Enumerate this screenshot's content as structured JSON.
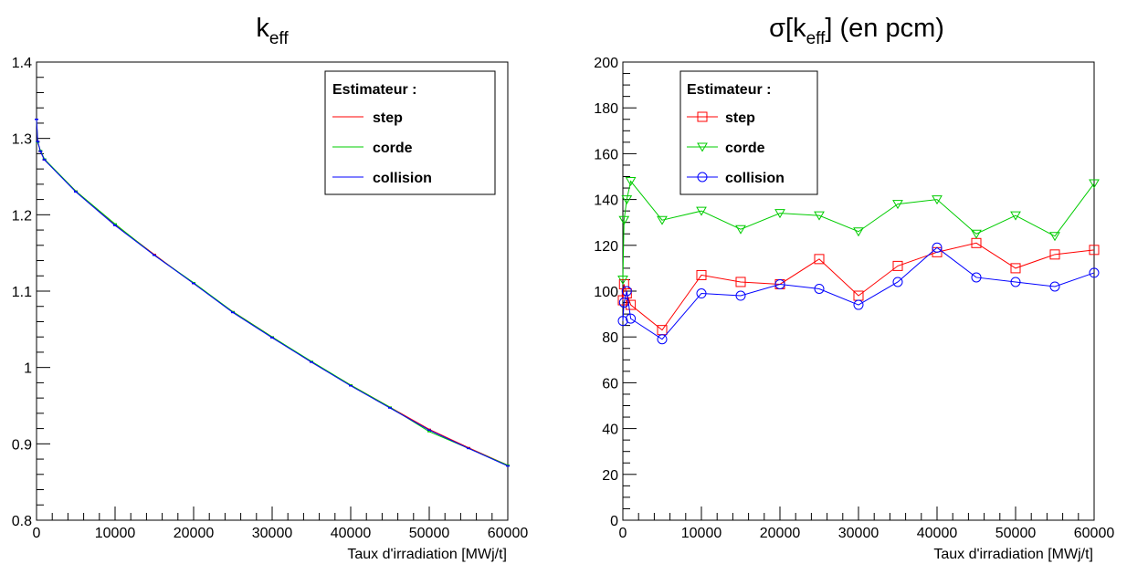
{
  "chart_data": [
    {
      "type": "line",
      "title_main": "k",
      "title_sub": "eff",
      "xlabel": "Taux d'irradiation [MWj/t]",
      "ylabel": "",
      "xlim": [
        0,
        60000
      ],
      "ylim": [
        0.8,
        1.4
      ],
      "xticks": [
        0,
        10000,
        20000,
        30000,
        40000,
        50000,
        60000
      ],
      "xtick_labels": [
        "0",
        "10000",
        "20000",
        "30000",
        "40000",
        "50000",
        "60000"
      ],
      "yticks": [
        0.8,
        0.9,
        1.0,
        1.1,
        1.2,
        1.3,
        1.4
      ],
      "ytick_labels": [
        "0.8",
        "0.9",
        "1",
        "1.1",
        "1.2",
        "1.3",
        "1.4"
      ],
      "grid": false,
      "legend": {
        "title": "Estimateur :",
        "placement": "top-right",
        "markers": false
      },
      "x": [
        0,
        150,
        500,
        1000,
        5000,
        10000,
        15000,
        20000,
        25000,
        30000,
        35000,
        40000,
        45000,
        50000,
        55000,
        60000
      ],
      "series": [
        {
          "name": "step",
          "color": "#ff0000",
          "marker": "none",
          "values": [
            1.325,
            1.296,
            1.283,
            1.272,
            1.231,
            1.187,
            1.148,
            1.11,
            1.073,
            1.04,
            1.007,
            0.977,
            0.948,
            0.919,
            0.895,
            0.872
          ]
        },
        {
          "name": "corde",
          "color": "#00cc00",
          "marker": "none",
          "values": [
            1.325,
            1.295,
            1.284,
            1.273,
            1.231,
            1.188,
            1.147,
            1.111,
            1.073,
            1.04,
            1.008,
            0.977,
            0.948,
            0.916,
            0.894,
            0.872
          ]
        },
        {
          "name": "collision",
          "color": "#0000ff",
          "marker": "none",
          "values": [
            1.325,
            1.296,
            1.283,
            1.272,
            1.23,
            1.186,
            1.147,
            1.11,
            1.072,
            1.039,
            1.007,
            0.976,
            0.947,
            0.918,
            0.894,
            0.871
          ]
        }
      ]
    },
    {
      "type": "line",
      "title_main": "σ[k",
      "title_sub": "eff",
      "title_rest": "] (en pcm)",
      "xlabel": "Taux d'irradiation [MWj/t]",
      "ylabel": "",
      "xlim": [
        0,
        60000
      ],
      "ylim": [
        0,
        200
      ],
      "xticks": [
        0,
        10000,
        20000,
        30000,
        40000,
        50000,
        60000
      ],
      "xtick_labels": [
        "0",
        "10000",
        "20000",
        "30000",
        "40000",
        "50000",
        "60000"
      ],
      "yticks": [
        0,
        20,
        40,
        60,
        80,
        100,
        120,
        140,
        160,
        180,
        200
      ],
      "ytick_labels": [
        "0",
        "20",
        "40",
        "60",
        "80",
        "100",
        "120",
        "140",
        "160",
        "180",
        "200"
      ],
      "grid": false,
      "legend": {
        "title": "Estimateur :",
        "placement": "top-left",
        "markers": true
      },
      "x": [
        0,
        150,
        500,
        1000,
        5000,
        10000,
        15000,
        20000,
        25000,
        30000,
        35000,
        40000,
        45000,
        50000,
        55000,
        60000
      ],
      "series": [
        {
          "name": "step",
          "color": "#ff0000",
          "marker": "square",
          "values": [
            96,
            103,
            99,
            94,
            83,
            107,
            104,
            103,
            114,
            98,
            111,
            117,
            121,
            110,
            116,
            118
          ]
        },
        {
          "name": "corde",
          "color": "#00cc00",
          "marker": "triangle-down",
          "values": [
            105,
            131,
            140,
            148,
            131,
            135,
            127,
            134,
            133,
            126,
            138,
            140,
            125,
            133,
            124,
            147
          ]
        },
        {
          "name": "collision",
          "color": "#0000ff",
          "marker": "circle",
          "values": [
            87,
            95,
            100,
            88,
            79,
            99,
            98,
            103,
            101,
            94,
            104,
            119,
            106,
            104,
            102,
            108
          ]
        }
      ]
    }
  ]
}
